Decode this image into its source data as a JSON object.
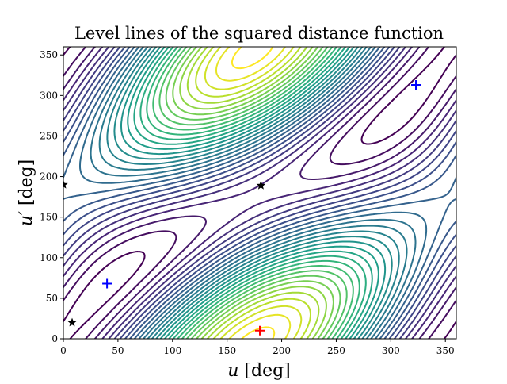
{
  "chart_data": {
    "type": "contour",
    "title": "Level lines of the squared distance function",
    "xlabel_var": "u",
    "ylabel_var": "u′",
    "xlabel_unit": "[deg]",
    "ylabel_unit": "[deg]",
    "xlim": [
      0,
      360
    ],
    "ylim": [
      0,
      360
    ],
    "xticks": [
      "0",
      "50",
      "100",
      "150",
      "200",
      "250",
      "300",
      "350"
    ],
    "yticks": [
      "0",
      "50",
      "100",
      "150",
      "200",
      "250",
      "300",
      "350"
    ],
    "colormap": "viridis",
    "n_levels": 30,
    "model": {
      "curve1": {
        "cx": 0,
        "cy": 0,
        "r": 1
      },
      "curve2": {
        "cx": 0.485,
        "cy": -0.052,
        "r": 0.75
      }
    },
    "markers": [
      {
        "kind": "minimum",
        "symbol": "plus",
        "color": "#0000ff",
        "u": 40,
        "v": 68
      },
      {
        "kind": "minimum",
        "symbol": "plus",
        "color": "#0000ff",
        "u": 323,
        "v": 313
      },
      {
        "kind": "maximum",
        "symbol": "plus",
        "color": "#ff0000",
        "u": 180,
        "v": 10
      },
      {
        "kind": "saddle",
        "symbol": "star",
        "color": "#000000",
        "u": 0,
        "v": 190
      },
      {
        "kind": "saddle",
        "symbol": "star",
        "color": "#000000",
        "u": 8,
        "v": 20
      },
      {
        "kind": "saddle",
        "symbol": "star",
        "color": "#000000",
        "u": 181,
        "v": 189
      }
    ]
  }
}
